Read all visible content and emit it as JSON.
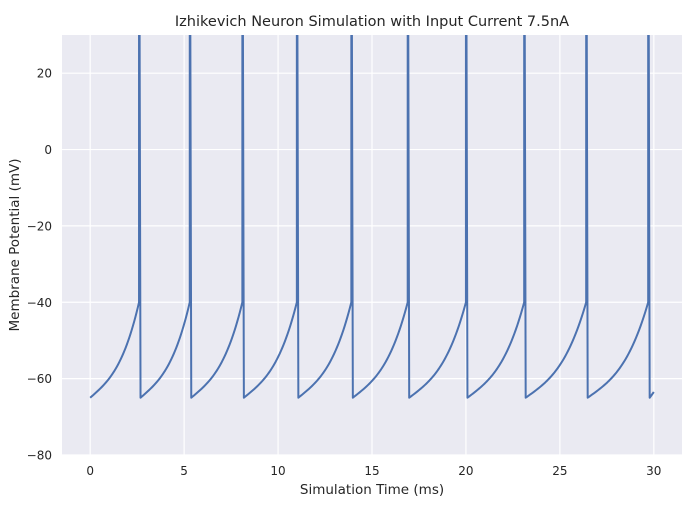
{
  "chart_data": {
    "type": "line",
    "title": "Izhikevich Neuron Simulation with Input Current 7.5nA",
    "xlabel": "Simulation Time (ms)",
    "ylabel": "Membrane Potential (mV)",
    "xlim": [
      -1.5,
      31.5
    ],
    "ylim": [
      -80,
      30
    ],
    "xticks": [
      0,
      5,
      10,
      15,
      20,
      25,
      30
    ],
    "yticks": [
      -80,
      -60,
      -40,
      -20,
      0,
      20
    ],
    "grid": true,
    "series": [
      {
        "name": "Membrane potential",
        "color": "#4c72b0",
        "reset_mV": -65,
        "threshold_mV": -40,
        "peak_mV": 30,
        "end_value_mV": -63.5,
        "spike_times_ms": [
          2.6,
          5.3,
          8.1,
          11.0,
          13.9,
          16.9,
          20.0,
          23.1,
          26.4,
          29.7
        ],
        "end_time_ms": 30.0
      }
    ]
  }
}
